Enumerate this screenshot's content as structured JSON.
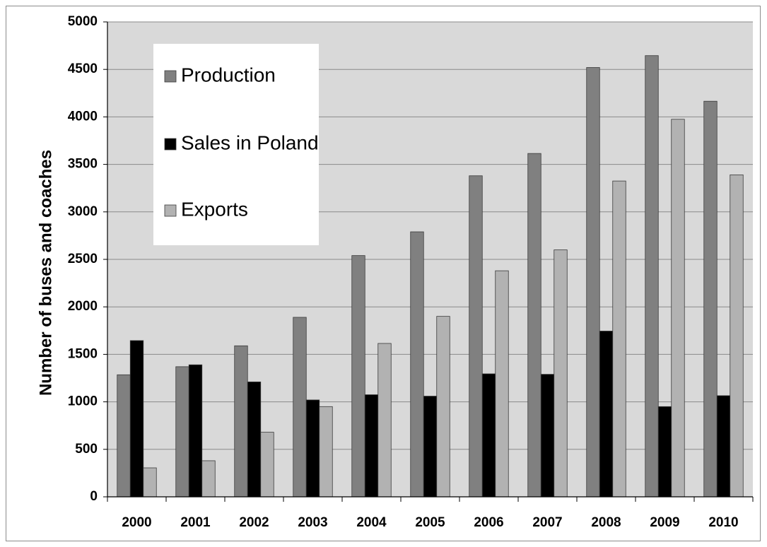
{
  "chart_data": {
    "type": "bar",
    "title": "",
    "xlabel": "",
    "ylabel": "Number of buses and coaches",
    "ylim": [
      0,
      5000
    ],
    "yticks": [
      0,
      500,
      1000,
      1500,
      2000,
      2500,
      3000,
      3500,
      4000,
      4500,
      5000
    ],
    "grid": true,
    "legend_position": "top-left",
    "categories": [
      "2000",
      "2001",
      "2002",
      "2003",
      "2004",
      "2005",
      "2006",
      "2007",
      "2008",
      "2009",
      "2010"
    ],
    "series": [
      {
        "name": "Production",
        "color": "#808080",
        "values": [
          1285,
          1370,
          1590,
          1890,
          2540,
          2790,
          3380,
          3615,
          4520,
          4645,
          4165
        ]
      },
      {
        "name": "Sales in Poland",
        "color": "#000000",
        "values": [
          1645,
          1390,
          1210,
          1020,
          1075,
          1060,
          1295,
          1290,
          1745,
          950,
          1065
        ]
      },
      {
        "name": "Exports",
        "color": "#b2b2b2",
        "values": [
          305,
          380,
          680,
          950,
          1615,
          1900,
          2380,
          2600,
          3325,
          3975,
          3390
        ]
      }
    ],
    "colors": {
      "plot_background": "#d9d9d9",
      "gridline": "#8a8a8a",
      "bar_border": "#3a3a3a",
      "legend_background": "#ffffff"
    }
  }
}
